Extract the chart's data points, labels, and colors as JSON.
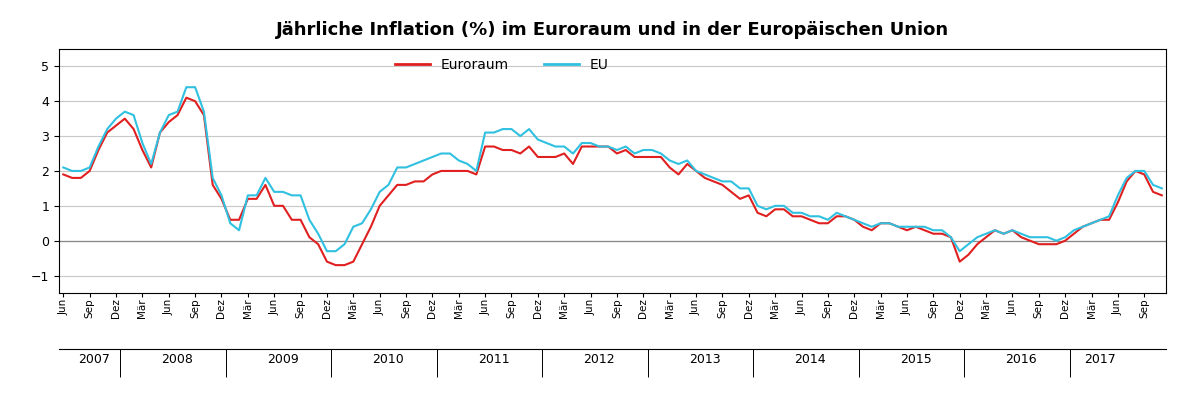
{
  "title": "Jährliche Inflation (%) im Euroraum und in der Europäischen Union",
  "ylim": [
    -1.5,
    5.5
  ],
  "yticks": [
    -1,
    0,
    1,
    2,
    3,
    4,
    5
  ],
  "color_euroraum": "#e02020",
  "color_eu": "#30c0e0",
  "legend_labels": [
    "Euroraum",
    "EU"
  ],
  "euroraum": [
    1.9,
    1.8,
    1.8,
    2.0,
    2.6,
    3.1,
    3.3,
    3.5,
    3.2,
    2.6,
    2.1,
    3.1,
    3.4,
    3.6,
    4.1,
    4.0,
    3.6,
    1.6,
    1.2,
    0.6,
    0.6,
    1.2,
    1.2,
    1.6,
    1.0,
    1.0,
    0.6,
    0.6,
    0.1,
    -0.1,
    -0.6,
    -0.7,
    -0.7,
    -0.6,
    -0.1,
    0.4,
    1.0,
    1.3,
    1.6,
    1.6,
    1.7,
    1.7,
    1.9,
    2.0,
    2.0,
    2.0,
    2.0,
    1.9,
    2.7,
    2.7,
    2.6,
    2.6,
    2.5,
    2.7,
    2.4,
    2.4,
    2.4,
    2.5,
    2.2,
    2.7,
    2.7,
    2.7,
    2.7,
    2.5,
    2.6,
    2.4,
    2.4,
    2.4,
    2.4,
    2.1,
    1.9,
    2.2,
    2.0,
    1.8,
    1.7,
    1.6,
    1.4,
    1.2,
    1.3,
    0.8,
    0.7,
    0.9,
    0.9,
    0.7,
    0.7,
    0.6,
    0.5,
    0.5,
    0.7,
    0.7,
    0.6,
    0.4,
    0.3,
    0.5,
    0.5,
    0.4,
    0.3,
    0.4,
    0.3,
    0.2,
    0.2,
    0.1,
    -0.6,
    -0.4,
    -0.1,
    0.1,
    0.3,
    0.2,
    0.3,
    0.1,
    0.0,
    -0.1,
    -0.1,
    -0.1,
    0.0,
    0.2,
    0.4,
    0.5,
    0.6,
    0.6,
    1.1,
    1.7,
    2.0,
    1.9,
    1.4,
    1.3
  ],
  "eu": [
    2.1,
    2.0,
    2.0,
    2.1,
    2.7,
    3.2,
    3.5,
    3.7,
    3.6,
    2.8,
    2.2,
    3.1,
    3.6,
    3.7,
    4.4,
    4.4,
    3.7,
    1.8,
    1.3,
    0.5,
    0.3,
    1.3,
    1.3,
    1.8,
    1.4,
    1.4,
    1.3,
    1.3,
    0.6,
    0.2,
    -0.3,
    -0.3,
    -0.1,
    0.4,
    0.5,
    0.9,
    1.4,
    1.6,
    2.1,
    2.1,
    2.2,
    2.3,
    2.4,
    2.5,
    2.5,
    2.3,
    2.2,
    2.0,
    3.1,
    3.1,
    3.2,
    3.2,
    3.0,
    3.2,
    2.9,
    2.8,
    2.7,
    2.7,
    2.5,
    2.8,
    2.8,
    2.7,
    2.7,
    2.6,
    2.7,
    2.5,
    2.6,
    2.6,
    2.5,
    2.3,
    2.2,
    2.3,
    2.0,
    1.9,
    1.8,
    1.7,
    1.7,
    1.5,
    1.5,
    1.0,
    0.9,
    1.0,
    1.0,
    0.8,
    0.8,
    0.7,
    0.7,
    0.6,
    0.8,
    0.7,
    0.6,
    0.5,
    0.4,
    0.5,
    0.5,
    0.4,
    0.4,
    0.4,
    0.4,
    0.3,
    0.3,
    0.1,
    -0.3,
    -0.1,
    0.1,
    0.2,
    0.3,
    0.2,
    0.3,
    0.2,
    0.1,
    0.1,
    0.1,
    0.0,
    0.1,
    0.3,
    0.4,
    0.5,
    0.6,
    0.7,
    1.3,
    1.8,
    2.0,
    2.0,
    1.6,
    1.5
  ],
  "background_color": "#ffffff",
  "grid_color": "#c8c8c8",
  "linewidth": 1.5
}
